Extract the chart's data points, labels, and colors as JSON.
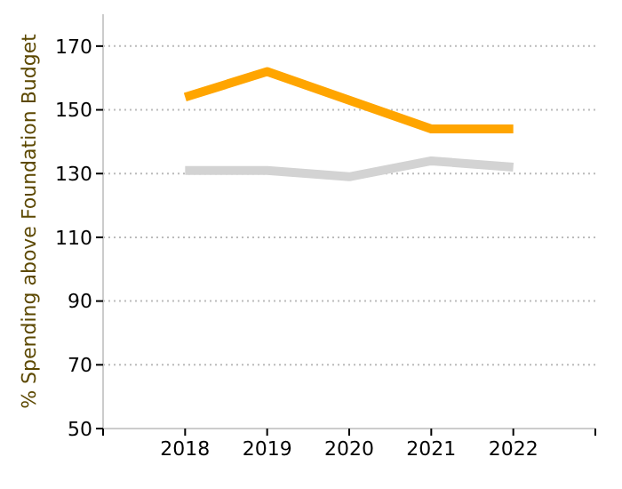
{
  "chart_data": {
    "type": "line",
    "ylabel": "% Spending above Foundation Budget",
    "categories": [
      "2018",
      "2019",
      "2020",
      "2021",
      "2022"
    ],
    "series": [
      {
        "color": "#ffa500",
        "values": [
          154,
          162,
          153,
          144,
          144
        ]
      },
      {
        "color": "#d3d3d3",
        "values": [
          131,
          131,
          129,
          134,
          132
        ]
      }
    ],
    "ylim": [
      50,
      180
    ],
    "yticks": [
      50,
      70,
      90,
      110,
      130,
      150,
      170
    ],
    "grid": "y",
    "marker": "none",
    "line_style": "solid"
  }
}
